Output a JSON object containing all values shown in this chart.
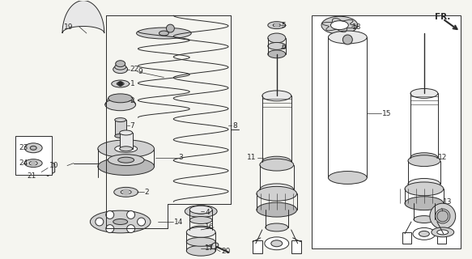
{
  "background_color": "#f5f5f0",
  "line_color": "#2a2a2a",
  "gray1": "#b8b8b8",
  "gray2": "#d0d0d0",
  "gray3": "#e8e8e8",
  "white": "#ffffff"
}
